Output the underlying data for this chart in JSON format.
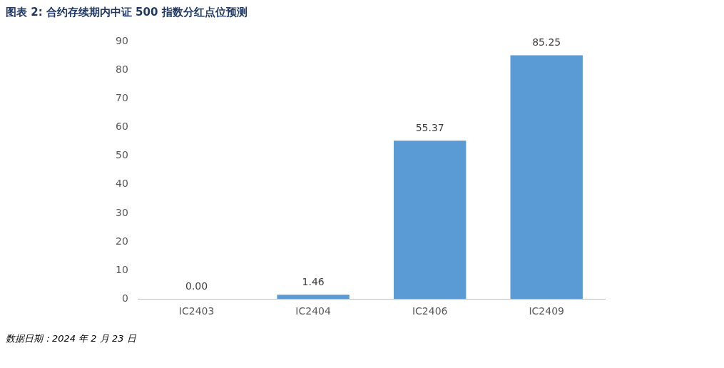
{
  "chart_data": {
    "type": "bar",
    "title": "图表 2:  合约存续期内中证 500 指数分红点位预测",
    "categories": [
      "IC2403",
      "IC2404",
      "IC2406",
      "IC2409"
    ],
    "values": [
      0,
      1.46,
      55.37,
      85.25
    ],
    "value_labels": [
      "0.00",
      "1.46",
      "55.37",
      "85.25"
    ],
    "color": "#5b9bd5",
    "ylim": [
      0,
      90
    ],
    "yticks": [
      0,
      10,
      20,
      30,
      40,
      50,
      60,
      70,
      80,
      90
    ],
    "grid": false,
    "legend": false,
    "annotations": [
      "数据日期：2024 年 2 月 23 日"
    ]
  }
}
